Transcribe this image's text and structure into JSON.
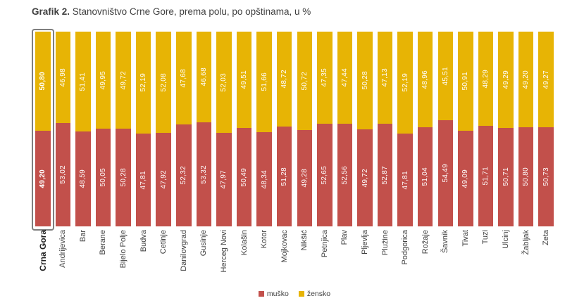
{
  "title": {
    "prefix": "Grafik 2.",
    "rest": " Stanovništvo Crne Gore, prema polu, po opštinama, u %"
  },
  "legend": {
    "items": [
      {
        "label": "muško",
        "color": "#c2504b"
      },
      {
        "label": "žensko",
        "color": "#e7b405"
      }
    ],
    "position": "bottom"
  },
  "chart_data": {
    "type": "bar",
    "stacked": true,
    "orientation": "vertical",
    "unit": "%",
    "ylim": [
      0,
      100
    ],
    "grid": false,
    "title": "Grafik 2. Stanovništvo Crne Gore, prema polu, po opštinama, u %",
    "xlabel": "",
    "ylabel": "",
    "value_label_format": "two decimals, comma as decimal separator",
    "legend_position": "bottom",
    "highlighted_category": "Crna Gora",
    "categories": [
      "Crna Gora",
      "Andrijevica",
      "Bar",
      "Berane",
      "Bijelo Polje",
      "Budva",
      "Cetinje",
      "Danilovgrad",
      "Gusinje",
      "Herceg Novi",
      "Kolašin",
      "Kotor",
      "Mojkovac",
      "Nikšić",
      "Petnjica",
      "Plav",
      "Pljevlja",
      "Plužine",
      "Podgorica",
      "Rožaje",
      "Šavnik",
      "Tivat",
      "Tuzi",
      "Ulcinj",
      "Žabljak",
      "Zeta"
    ],
    "series": [
      {
        "name": "muško",
        "color": "#c2504b",
        "values": [
          49.2,
          53.02,
          48.59,
          50.05,
          50.28,
          47.81,
          47.92,
          52.32,
          53.32,
          47.97,
          50.49,
          48.34,
          51.28,
          49.28,
          52.65,
          52.56,
          49.72,
          52.87,
          47.81,
          51.04,
          54.49,
          49.09,
          51.71,
          50.71,
          50.8,
          50.73
        ]
      },
      {
        "name": "žensko",
        "color": "#e7b405",
        "values": [
          50.8,
          46.98,
          51.41,
          49.95,
          49.72,
          52.19,
          52.08,
          47.68,
          46.68,
          52.03,
          49.51,
          51.66,
          48.72,
          50.72,
          47.35,
          47.44,
          50.28,
          47.13,
          52.19,
          48.96,
          45.51,
          50.91,
          48.29,
          49.29,
          49.2,
          49.27
        ]
      }
    ]
  }
}
